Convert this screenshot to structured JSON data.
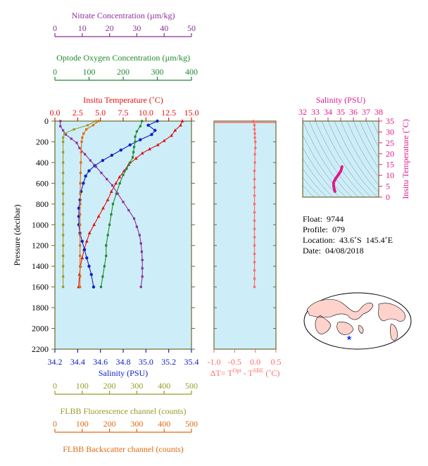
{
  "info": {
    "float_label": "Float:",
    "float_value": "9744",
    "profile_label": "Profile:",
    "profile_value": "079",
    "location_label": "Location:",
    "location_value": "43.6˚S  145.4˚E",
    "date_label": "Date:",
    "date_value": "04/08/2018"
  },
  "colors": {
    "nitrate": "#8b2f9e",
    "oxygen": "#1e8a2e",
    "temperature": "#e01010",
    "salinity": "#1020c8",
    "fluorescence": "#9a9a2a",
    "backscatter": "#e06a10",
    "dt": "#ff6a6a",
    "ts": "#e01a8a",
    "plot_bg": "#cdeef8",
    "frame": "#6b6b2a",
    "star": "#1a3cff"
  },
  "chart_data": [
    {
      "type": "line",
      "title": "",
      "ylabel": "Pressure (decibar)",
      "ylim": [
        2200,
        0
      ],
      "yticks": [
        "0",
        "200",
        "400",
        "600",
        "800",
        "1000",
        "1200",
        "1400",
        "1600",
        "1800",
        "2000",
        "2200"
      ],
      "grid": false,
      "axes": {
        "nitrate": {
          "label": "Nitrate Concentration (µm/kg)",
          "range": [
            0,
            50
          ],
          "ticks": [
            "0",
            "10",
            "20",
            "30",
            "40",
            "50"
          ]
        },
        "oxygen": {
          "label": "Optode Oxygen Concentration (µm/kg)",
          "range": [
            0,
            400
          ],
          "ticks": [
            "0",
            "100",
            "200",
            "300",
            "400"
          ]
        },
        "temperature": {
          "label": "Insitu Temperature (˚C)",
          "range": [
            0,
            15
          ],
          "ticks": [
            "0.0",
            "2.5",
            "5.0",
            "7.5",
            "10.0",
            "12.5",
            "15.0"
          ]
        },
        "salinity": {
          "label": "Salinity (PSU)",
          "range": [
            34.2,
            35.4
          ],
          "ticks": [
            "34.2",
            "34.4",
            "34.6",
            "34.8",
            "35.0",
            "35.2",
            "35.4"
          ]
        },
        "fluorescence": {
          "label": "FLBB Fluorescence channel (counts)",
          "range": [
            0,
            500
          ],
          "ticks": [
            "0",
            "100",
            "200",
            "300",
            "400",
            "500"
          ]
        },
        "backscatter": {
          "label": "FLBB Backscatter channel (counts)",
          "range": [
            0,
            500
          ],
          "ticks": [
            "0",
            "100",
            "200",
            "300",
            "400",
            "500"
          ]
        }
      },
      "series": [
        {
          "key": "temperature",
          "marker": "triangle",
          "points": [
            [
              14.0,
              0
            ],
            [
              13.8,
              40
            ],
            [
              13.2,
              90
            ],
            [
              12.8,
              140
            ],
            [
              12.0,
              190
            ],
            [
              11.3,
              230
            ],
            [
              10.4,
              270
            ],
            [
              9.6,
              310
            ],
            [
              8.9,
              360
            ],
            [
              8.1,
              420
            ],
            [
              7.6,
              480
            ],
            [
              7.1,
              540
            ],
            [
              6.7,
              600
            ],
            [
              6.2,
              680
            ],
            [
              5.8,
              760
            ],
            [
              5.3,
              840
            ],
            [
              4.8,
              920
            ],
            [
              4.3,
              1000
            ],
            [
              3.8,
              1080
            ],
            [
              3.5,
              1160
            ],
            [
              3.2,
              1240
            ],
            [
              3.0,
              1320
            ],
            [
              2.8,
              1400
            ],
            [
              2.7,
              1480
            ],
            [
              2.6,
              1600
            ]
          ]
        },
        {
          "key": "salinity",
          "marker": "circle",
          "points": [
            [
              35.1,
              0
            ],
            [
              35.02,
              40
            ],
            [
              35.08,
              90
            ],
            [
              35.05,
              130
            ],
            [
              34.95,
              180
            ],
            [
              34.86,
              230
            ],
            [
              34.78,
              280
            ],
            [
              34.7,
              330
            ],
            [
              34.62,
              380
            ],
            [
              34.55,
              430
            ],
            [
              34.5,
              480
            ],
            [
              34.47,
              530
            ],
            [
              34.45,
              600
            ],
            [
              34.43,
              680
            ],
            [
              34.42,
              760
            ],
            [
              34.41,
              840
            ],
            [
              34.41,
              920
            ],
            [
              34.41,
              1000
            ],
            [
              34.42,
              1080
            ],
            [
              34.44,
              1160
            ],
            [
              34.46,
              1240
            ],
            [
              34.48,
              1320
            ],
            [
              34.5,
              1400
            ],
            [
              34.52,
              1480
            ],
            [
              34.54,
              1600
            ]
          ]
        },
        {
          "key": "oxygen",
          "marker": "square",
          "points": [
            [
              255,
              0
            ],
            [
              250,
              50
            ],
            [
              240,
              100
            ],
            [
              235,
              150
            ],
            [
              235,
              200
            ],
            [
              232,
              250
            ],
            [
              230,
              300
            ],
            [
              228,
              350
            ],
            [
              220,
              400
            ],
            [
              210,
              460
            ],
            [
              200,
              520
            ],
            [
              190,
              600
            ],
            [
              180,
              700
            ],
            [
              170,
              800
            ],
            [
              165,
              900
            ],
            [
              160,
              1000
            ],
            [
              155,
              1100
            ],
            [
              150,
              1200
            ],
            [
              150,
              1300
            ],
            [
              145,
              1400
            ],
            [
              140,
              1500
            ],
            [
              135,
              1600
            ]
          ]
        },
        {
          "key": "nitrate",
          "marker": "square",
          "points": [
            [
              2,
              0
            ],
            [
              2,
              50
            ],
            [
              3,
              90
            ],
            [
              4,
              130
            ],
            [
              6,
              170
            ],
            [
              8,
              210
            ],
            [
              9,
              260
            ],
            [
              11,
              320
            ],
            [
              13,
              380
            ],
            [
              15,
              440
            ],
            [
              17,
              500
            ],
            [
              19,
              560
            ],
            [
              21,
              620
            ],
            [
              23,
              700
            ],
            [
              25,
              780
            ],
            [
              27,
              860
            ],
            [
              29,
              940
            ],
            [
              30,
              1020
            ],
            [
              31,
              1100
            ],
            [
              31.5,
              1180
            ],
            [
              31.8,
              1260
            ],
            [
              32,
              1340
            ],
            [
              32,
              1420
            ],
            [
              32,
              1500
            ],
            [
              31.5,
              1600
            ]
          ]
        },
        {
          "key": "fluorescence",
          "marker": "square",
          "points": [
            [
              150,
              0
            ],
            [
              120,
              40
            ],
            [
              70,
              80
            ],
            [
              35,
              120
            ],
            [
              30,
              160
            ],
            [
              30,
              200
            ],
            [
              30,
              300
            ],
            [
              30,
              400
            ],
            [
              30,
              500
            ],
            [
              30,
              600
            ],
            [
              30,
              700
            ],
            [
              30,
              800
            ],
            [
              30,
              900
            ],
            [
              30,
              1000
            ],
            [
              30,
              1100
            ],
            [
              30,
              1200
            ],
            [
              30,
              1300
            ],
            [
              30,
              1400
            ],
            [
              30,
              1500
            ],
            [
              30,
              1600
            ]
          ]
        },
        {
          "key": "backscatter",
          "marker": "square",
          "points": [
            [
              160,
              0
            ],
            [
              140,
              40
            ],
            [
              115,
              80
            ],
            [
              105,
              120
            ],
            [
              100,
              160
            ],
            [
              98,
              200
            ],
            [
              96,
              300
            ],
            [
              95,
              400
            ],
            [
              94,
              500
            ],
            [
              93,
              600
            ],
            [
              93,
              700
            ],
            [
              93,
              800
            ],
            [
              92,
              900
            ],
            [
              92,
              1000
            ],
            [
              92,
              1100
            ],
            [
              92,
              1200
            ],
            [
              92,
              1300
            ],
            [
              92,
              1400
            ],
            [
              92,
              1500
            ],
            [
              92,
              1600
            ]
          ]
        }
      ]
    },
    {
      "type": "line",
      "xlabel_prefix": "ΔT= T",
      "xlabel_sup1": "Opt",
      "xlabel_mid": " - T",
      "xlabel_sup2": "SBE",
      "xlabel_suffix": " (˚C)",
      "xlim": [
        -1.0,
        0.5
      ],
      "ylim": [
        2200,
        0
      ],
      "xticks": [
        "-1.0",
        "-0.5",
        "0.0",
        "0.5"
      ],
      "series": [
        {
          "key": "dt",
          "marker": "circle",
          "points": [
            [
              -0.05,
              0
            ],
            [
              -0.02,
              40
            ],
            [
              -0.02,
              80
            ],
            [
              -0.01,
              120
            ],
            [
              -0.01,
              160
            ],
            [
              0.0,
              200
            ],
            [
              0.0,
              260
            ],
            [
              -0.01,
              320
            ],
            [
              -0.01,
              400
            ],
            [
              -0.02,
              480
            ],
            [
              -0.02,
              560
            ],
            [
              -0.02,
              640
            ],
            [
              -0.02,
              720
            ],
            [
              -0.02,
              800
            ],
            [
              -0.02,
              880
            ],
            [
              -0.02,
              960
            ],
            [
              -0.02,
              1040
            ],
            [
              -0.02,
              1120
            ],
            [
              -0.02,
              1200
            ],
            [
              -0.02,
              1280
            ],
            [
              -0.02,
              1360
            ],
            [
              -0.02,
              1440
            ],
            [
              -0.02,
              1520
            ],
            [
              -0.02,
              1600
            ]
          ]
        }
      ]
    },
    {
      "type": "scatter",
      "xlabel": "Salinity (PSU)",
      "ylabel": "Insitu Temperature (˚C)",
      "xlim": [
        32,
        38
      ],
      "ylim": [
        0,
        35
      ],
      "xticks": [
        "32",
        "33",
        "34",
        "35",
        "36",
        "37",
        "38"
      ],
      "yticks": [
        "0",
        "5",
        "10",
        "15",
        "20",
        "25",
        "30",
        "35"
      ],
      "series": [
        {
          "key": "ts",
          "points": [
            [
              34.55,
              2.6
            ],
            [
              34.52,
              3.0
            ],
            [
              34.5,
              3.5
            ],
            [
              34.48,
              4.0
            ],
            [
              34.46,
              4.5
            ],
            [
              34.45,
              5.0
            ],
            [
              34.44,
              5.5
            ],
            [
              34.43,
              6.0
            ],
            [
              34.44,
              6.5
            ],
            [
              34.46,
              7.0
            ],
            [
              34.5,
              7.5
            ],
            [
              34.55,
              8.0
            ],
            [
              34.6,
              8.5
            ],
            [
              34.66,
              9.0
            ],
            [
              34.72,
              9.5
            ],
            [
              34.78,
              10.0
            ],
            [
              34.84,
              10.5
            ],
            [
              34.9,
              11.0
            ],
            [
              34.95,
              11.5
            ],
            [
              35.0,
              12.0
            ],
            [
              35.05,
              12.8
            ],
            [
              35.08,
              13.5
            ],
            [
              35.1,
              14.0
            ]
          ]
        }
      ]
    }
  ]
}
